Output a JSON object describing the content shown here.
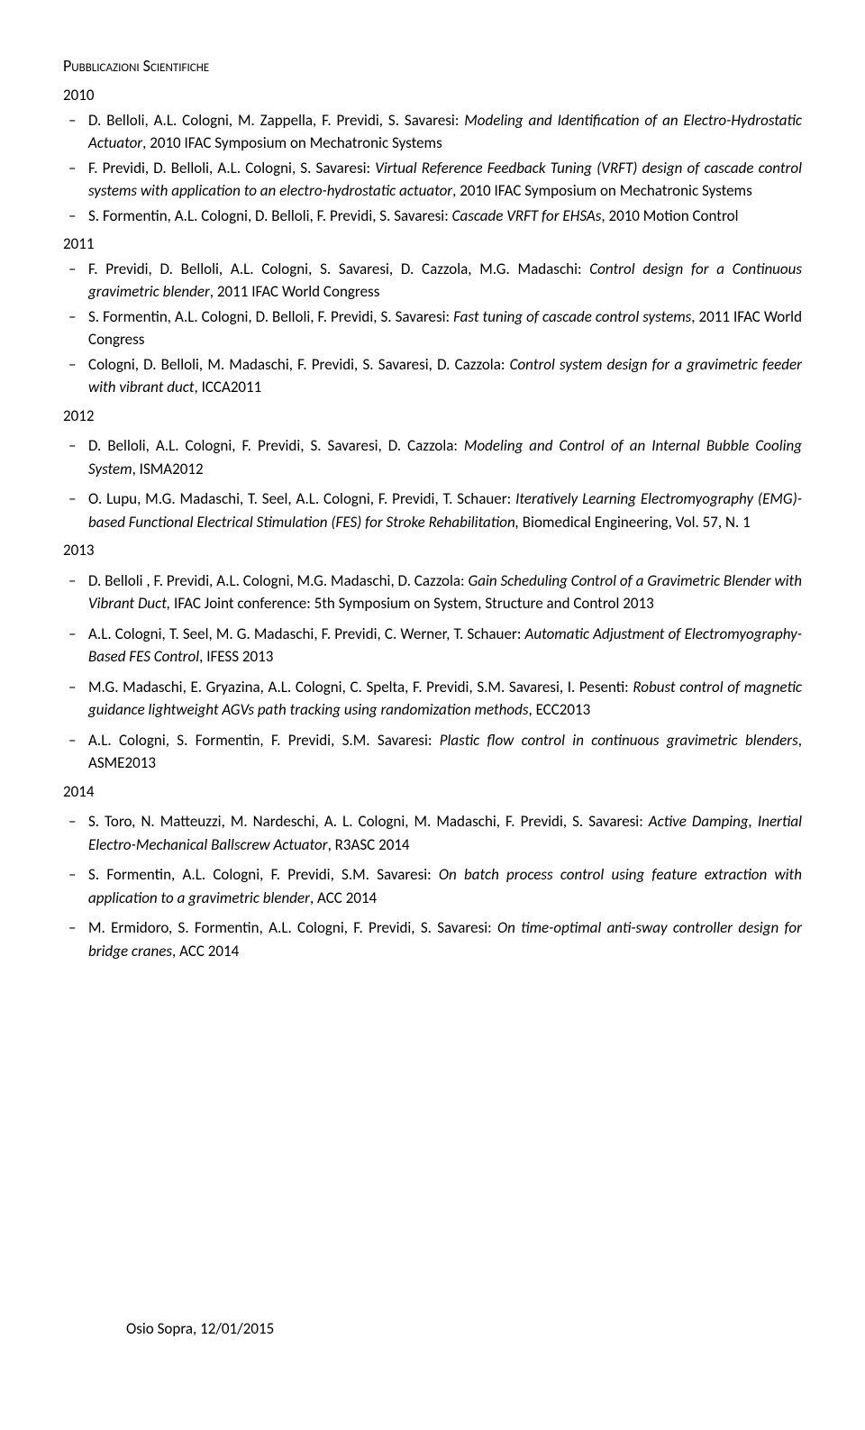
{
  "section_title": "Pubblicazioni Scientifiche",
  "years": [
    {
      "year": "2010",
      "items": [
        {
          "authors": "D. Belloli, A.L. Cologni, M. Zappella, F. Previdi, S. Savaresi: ",
          "title": "Modeling and Identification of an Electro-Hydrostatic Actuator",
          "tail": ", 2010 IFAC Symposium on Mechatronic Systems"
        },
        {
          "authors": "F. Previdi, D. Belloli, A.L. Cologni, S. Savaresi: ",
          "title": "Virtual Reference Feedback Tuning (VRFT) design of cascade control systems with application to an electro-hydrostatic actuator",
          "tail": ", 2010 IFAC Symposium on Mechatronic Systems"
        },
        {
          "authors": "S. Formentin, A.L. Cologni, D. Belloli, F. Previdi, S. Savaresi: ",
          "title": "Cascade VRFT for EHSAs",
          "tail": ", 2010 Motion Control"
        }
      ]
    },
    {
      "year": "2011",
      "items": [
        {
          "authors": "F. Previdi, D. Belloli, A.L. Cologni, S. Savaresi, D. Cazzola, M.G. Madaschi: ",
          "title": "Control design for a Continuous gravimetric blender",
          "tail": ", 2011 IFAC World Congress"
        },
        {
          "authors": "S. Formentin, A.L. Cologni, D. Belloli, F. Previdi, S. Savaresi: ",
          "title": "Fast tuning of cascade control systems",
          "tail": ", 2011 IFAC World Congress"
        },
        {
          "authors": "Cologni, D. Belloli, M. Madaschi, F. Previdi, S. Savaresi, D. Cazzola: ",
          "title": "Control system design for a gravimetric feeder with vibrant duct",
          "tail": ", ICCA2011"
        }
      ]
    },
    {
      "year": "2012",
      "items": [
        {
          "authors": "D. Belloli, A.L. Cologni, F. Previdi, S. Savaresi, D. Cazzola: ",
          "title": "Modeling and Control of an Internal Bubble Cooling System",
          "tail": ", ISMA2012"
        },
        {
          "authors": "O. Lupu, M.G. Madaschi, T. Seel, A.L. Cologni, F. Previdi, T. Schauer: ",
          "title": "Iteratively Learning Electromyography (EMG)-based Functional Electrical Stimulation (FES) for Stroke Rehabilitation,",
          "tail": " Biomedical Engineering, Vol. 57, N. 1"
        }
      ]
    },
    {
      "year": "2013",
      "items": [
        {
          "authors": "D. Belloli , F. Previdi, A.L. Cologni, M.G. Madaschi, D. Cazzola: ",
          "title": "Gain Scheduling Control of a Gravimetric Blender with Vibrant Duct,",
          "tail": " IFAC Joint conference: 5th Symposium on System, Structure and Control 2013"
        },
        {
          "authors": "A.L. Cologni, T. Seel, M. G. Madaschi, F. Previdi, C. Werner, T. Schauer: ",
          "title": "Automatic Adjustment of Electromyography-Based FES Control",
          "tail": ", IFESS 2013"
        },
        {
          "authors": "M.G. Madaschi, E. Gryazina, A.L. Cologni, C. Spelta, F. Previdi, S.M. Savaresi, I. Pesenti: ",
          "title": "Robust control of magnetic guidance lightweight AGVs path tracking using randomization methods",
          "tail": ", ECC2013"
        },
        {
          "authors": "A.L. Cologni, S. Formentin, F. Previdi, S.M. Savaresi: ",
          "title": "Plastic flow control in continuous gravimetric blenders",
          "tail": ", ASME2013"
        }
      ]
    },
    {
      "year": "2014",
      "items": [
        {
          "authors": "S. Toro, N. Matteuzzi, M. Nardeschi, A. L. Cologni, M. Madaschi, F. Previdi, S. Savaresi: ",
          "title": "Active Damping, Inertial Electro-Mechanical Ballscrew Actuator",
          "tail": ", R3ASC 2014"
        },
        {
          "authors": "S. Formentin, A.L. Cologni, F. Previdi, S.M. Savaresi: ",
          "title": "On batch process control using feature extraction with application to a gravimetric blender",
          "tail": ", ACC 2014"
        },
        {
          "authors": "M. Ermidoro, S. Formentin, A.L. Cologni, F. Previdi, S. Savaresi: ",
          "title": "On time-optimal anti-sway controller design for bridge cranes",
          "tail": ", ACC 2014"
        }
      ]
    }
  ],
  "footer": "Osio Sopra, 12/01/2015"
}
